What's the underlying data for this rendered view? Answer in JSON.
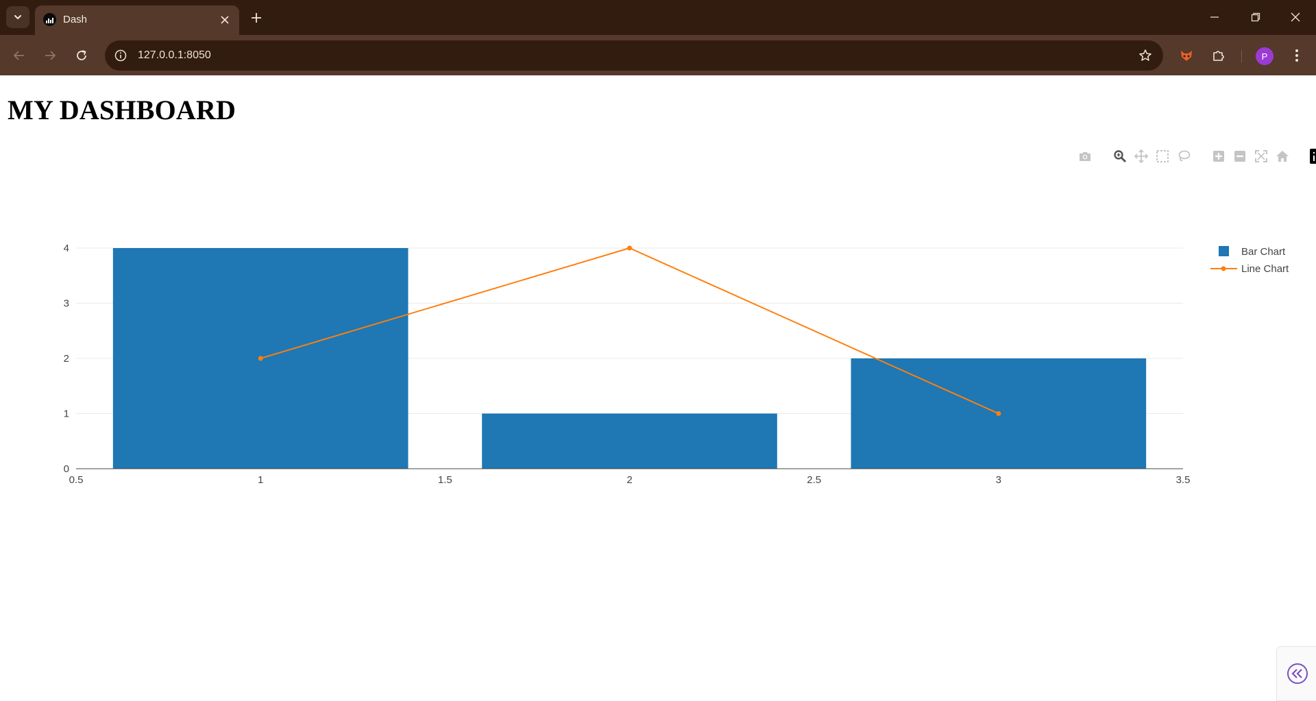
{
  "browser": {
    "tab_title": "Dash",
    "url": "127.0.0.1:8050",
    "profile_initial": "P",
    "colors": {
      "frame": "#321c10",
      "toolbar": "#55392a",
      "avatar": "#9c3ad6"
    }
  },
  "page": {
    "title": "MY DASHBOARD"
  },
  "modebar": {
    "buttons": [
      "camera-icon",
      "zoom-icon",
      "pan-icon",
      "box-select-icon",
      "lasso-select-icon",
      "zoom-in-icon",
      "zoom-out-icon",
      "autoscale-icon",
      "reset-axes-icon",
      "plotly-logo-icon"
    ]
  },
  "chart_data": {
    "type": "bar",
    "title": "",
    "xlabel": "",
    "ylabel": "",
    "xlim": [
      0.5,
      3.5
    ],
    "ylim": [
      0,
      4
    ],
    "x_ticks": [
      "0.5",
      "1",
      "1.5",
      "2",
      "2.5",
      "3",
      "3.5"
    ],
    "y_ticks": [
      "0",
      "1",
      "2",
      "3",
      "4"
    ],
    "grid": true,
    "legend_position": "top-right",
    "series": [
      {
        "name": "Bar Chart",
        "type": "bar",
        "color": "#1f77b4",
        "x": [
          1,
          2,
          3
        ],
        "values": [
          4,
          1,
          2
        ]
      },
      {
        "name": "Line Chart",
        "type": "line",
        "color": "#ff7f0e",
        "x": [
          1,
          2,
          3
        ],
        "values": [
          2,
          4,
          1
        ]
      }
    ]
  }
}
